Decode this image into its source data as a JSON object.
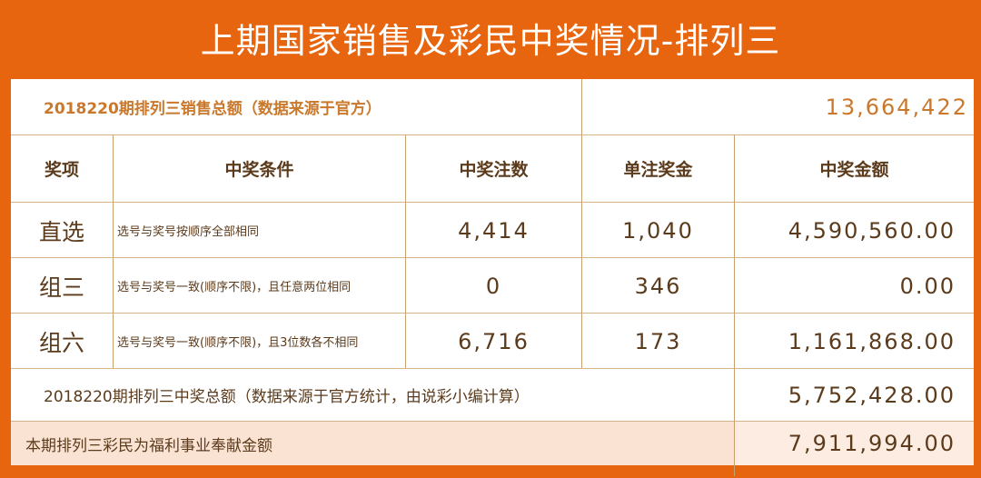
{
  "title": "上期国家销售及彩民中奖情况-排列三",
  "sales": {
    "label": "2018220期排列三销售总额（数据来源于官方）",
    "value": "13,664,422"
  },
  "headers": [
    "奖项",
    "中奖条件",
    "中奖注数",
    "单注奖金",
    "中奖金额"
  ],
  "rows": [
    {
      "name": "直选",
      "condition": "选号与奖号按顺序全部相同",
      "count": "4,414",
      "prize": "1,040",
      "amount": "4,590,560.00"
    },
    {
      "name": "组三",
      "condition": "选号与奖号一致(顺序不限)，且任意两位相同",
      "count": "0",
      "prize": "346",
      "amount": "0.00"
    },
    {
      "name": "组六",
      "condition": "选号与奖号一致(顺序不限)，且3位数各不相同",
      "count": "6,716",
      "prize": "173",
      "amount": "1,161,868.00"
    }
  ],
  "total": {
    "label": "2018220期排列三中奖总额（数据来源于官方统计，由说彩小编计算）",
    "value": "5,752,428.00"
  },
  "welfare": {
    "label": "本期排列三彩民为福利事业奉献金额",
    "value": "7,911,994.00"
  },
  "colors": {
    "background": "#e8650f",
    "accent_text": "#c9782c",
    "text": "#5b3b1c",
    "welfare_row": "#fbe3d4"
  }
}
